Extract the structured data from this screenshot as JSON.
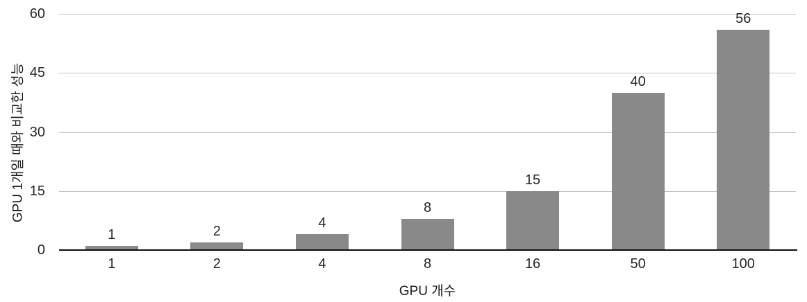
{
  "chart_data": {
    "type": "bar",
    "categories": [
      "1",
      "2",
      "4",
      "8",
      "16",
      "50",
      "100"
    ],
    "values": [
      1,
      2,
      4,
      8,
      15,
      40,
      56
    ],
    "value_labels": [
      "1",
      "2",
      "4",
      "8",
      "15",
      "40",
      "56"
    ],
    "title": "",
    "xlabel": "GPU 개수",
    "ylabel": "GPU 1개일 때와 비교한 성능",
    "yticks": [
      0,
      15,
      30,
      45,
      60
    ],
    "ylim": [
      0,
      60
    ],
    "grid": true,
    "legend_position": "none",
    "colors": {
      "bar": "#898989",
      "gridline": "#c3c3c3",
      "axis_line": "#0d0d0d",
      "tick_text": "#262626",
      "title_text": "#1a1a1a",
      "background": "#ffffff"
    }
  }
}
